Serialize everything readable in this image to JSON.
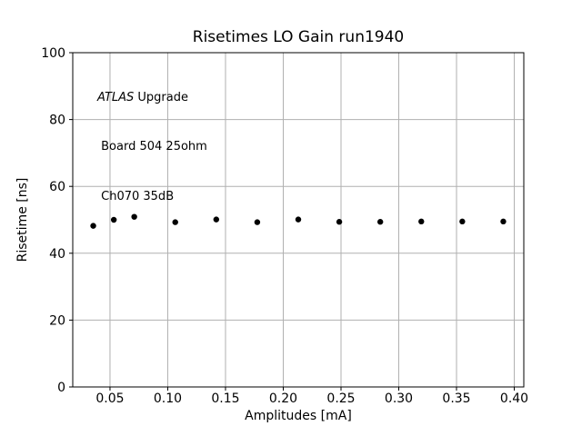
{
  "figure": {
    "background_color": "#ffffff",
    "text_color": "#000000"
  },
  "chart_data": {
    "type": "scatter",
    "title": "Risetimes LO Gain run1940",
    "xlabel": "Amplitudes [mA]",
    "ylabel": "Risetime [ns]",
    "annotation": {
      "line1_italic": "ATLAS",
      "line1_rest": " Upgrade",
      "line2": " Board 504 25ohm",
      "line3": " Ch070 35dB"
    },
    "x": [
      0.0355,
      0.0533,
      0.071,
      0.1065,
      0.142,
      0.1775,
      0.213,
      0.2485,
      0.284,
      0.3195,
      0.355,
      0.3905
    ],
    "y": [
      48.2,
      50.0,
      50.9,
      49.3,
      50.1,
      49.3,
      50.1,
      49.4,
      49.4,
      49.5,
      49.5,
      49.5
    ],
    "xlim": [
      0.01775,
      0.40825
    ],
    "ylim": [
      0,
      100
    ],
    "x_ticks": [
      0.05,
      0.1,
      0.15,
      0.2,
      0.25,
      0.3,
      0.35,
      0.4
    ],
    "x_tick_labels": [
      "0.05",
      "0.10",
      "0.15",
      "0.20",
      "0.25",
      "0.30",
      "0.35",
      "0.40"
    ],
    "y_ticks": [
      0,
      20,
      40,
      60,
      80,
      100
    ],
    "y_tick_labels": [
      "0",
      "20",
      "40",
      "60",
      "80",
      "100"
    ],
    "grid": true,
    "grid_color": "#b0b0b0",
    "marker_color": "#000000",
    "legend": null
  }
}
